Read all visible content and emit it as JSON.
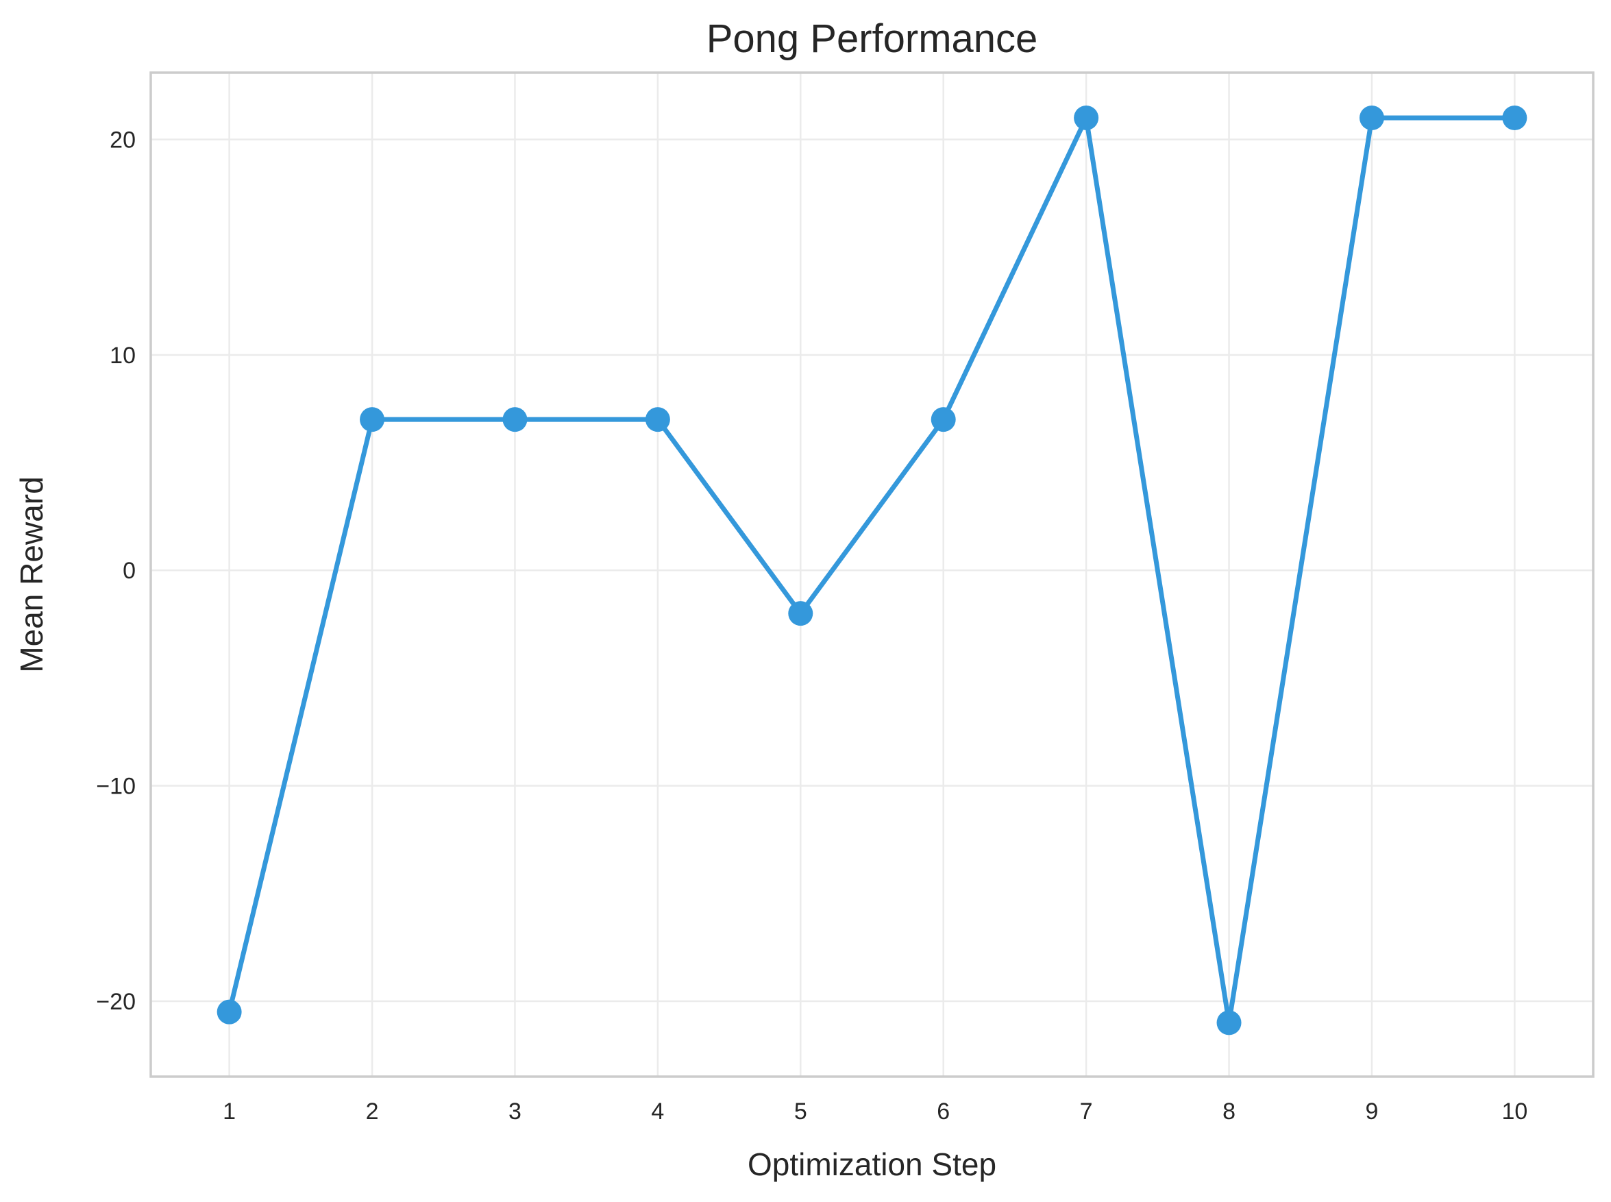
{
  "chart_data": {
    "type": "line",
    "title": "Pong Performance",
    "xlabel": "Optimization Step",
    "ylabel": "Mean Reward",
    "x": [
      1,
      2,
      3,
      4,
      5,
      6,
      7,
      8,
      9,
      10
    ],
    "series": [
      {
        "values": [
          -20.5,
          7,
          7,
          7,
          -2,
          7,
          21,
          -21,
          21,
          21
        ],
        "color": "#3498db"
      }
    ],
    "xlim": [
      0.45,
      10.55
    ],
    "ylim": [
      -23.5,
      23.1
    ],
    "xticks": [
      1,
      2,
      3,
      4,
      5,
      6,
      7,
      8,
      9,
      10
    ],
    "yticks": [
      -20,
      -10,
      0,
      10,
      20
    ],
    "ytick_labels": [
      "−20",
      "−10",
      "0",
      "10",
      "20"
    ],
    "grid": true,
    "legend": "none"
  }
}
